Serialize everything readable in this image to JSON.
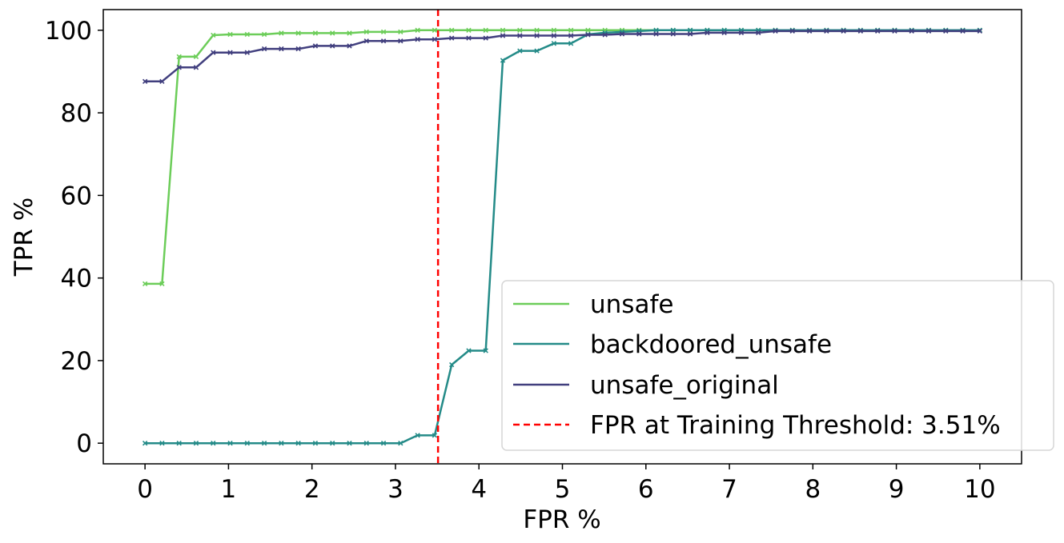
{
  "chart_data": {
    "type": "line",
    "xlabel": "FPR %",
    "ylabel": "TPR %",
    "xlim": [
      -0.5,
      10.5
    ],
    "ylim": [
      -5,
      105
    ],
    "xticks": [
      0,
      1,
      2,
      3,
      4,
      5,
      6,
      7,
      8,
      9,
      10
    ],
    "yticks": [
      0,
      20,
      40,
      60,
      80,
      100
    ],
    "grid": false,
    "legend_position": "lower-right",
    "x": [
      0.0,
      0.2041,
      0.4082,
      0.6122,
      0.8163,
      1.0204,
      1.2245,
      1.4286,
      1.6327,
      1.8367,
      2.0408,
      2.2449,
      2.449,
      2.6531,
      2.8571,
      3.0612,
      3.2653,
      3.4694,
      3.6735,
      3.8776,
      4.0816,
      4.2857,
      4.4898,
      4.6939,
      4.898,
      5.102,
      5.3061,
      5.5102,
      5.7143,
      5.9184,
      6.1224,
      6.3265,
      6.5306,
      6.7347,
      6.9388,
      7.1429,
      7.3469,
      7.551,
      7.7551,
      7.9592,
      8.1633,
      8.3673,
      8.5714,
      8.7755,
      8.9796,
      9.1837,
      9.3878,
      9.5918,
      9.7959,
      10.0
    ],
    "series": [
      {
        "name": "unsafe",
        "color": "#6ccd59",
        "values": [
          38.6,
          38.6,
          93.6,
          93.6,
          98.8,
          99.0,
          99.0,
          99.0,
          99.3,
          99.3,
          99.3,
          99.3,
          99.3,
          99.6,
          99.6,
          99.6,
          100,
          100,
          100,
          100,
          100,
          100,
          100,
          100,
          100,
          100,
          100,
          100,
          100,
          100,
          100,
          100,
          100,
          100,
          100,
          100,
          100,
          100,
          100,
          100,
          100,
          100,
          100,
          100,
          100,
          100,
          100,
          100,
          100,
          100
        ]
      },
      {
        "name": "backdoored_unsafe",
        "color": "#248b88",
        "values": [
          0,
          0,
          0,
          0,
          0,
          0,
          0,
          0,
          0,
          0,
          0,
          0,
          0,
          0,
          0,
          0,
          1.9,
          1.9,
          19.0,
          22.4,
          22.4,
          92.7,
          95.0,
          95.0,
          96.8,
          96.8,
          99.0,
          99.4,
          99.6,
          99.8,
          100,
          100,
          100,
          100,
          100,
          100,
          100,
          100,
          100,
          100,
          100,
          100,
          100,
          100,
          100,
          100,
          100,
          100,
          100,
          100
        ]
      },
      {
        "name": "unsafe_original",
        "color": "#413f7e",
        "values": [
          87.6,
          87.6,
          91.0,
          91.0,
          94.6,
          94.6,
          94.6,
          95.5,
          95.5,
          95.5,
          96.2,
          96.2,
          96.2,
          97.4,
          97.4,
          97.4,
          97.8,
          97.8,
          98.1,
          98.1,
          98.1,
          98.7,
          98.7,
          98.7,
          98.7,
          98.7,
          98.9,
          98.9,
          99.1,
          99.1,
          99.1,
          99.1,
          99.1,
          99.4,
          99.4,
          99.4,
          99.4,
          99.8,
          99.8,
          99.8,
          99.8,
          99.8,
          99.8,
          99.8,
          99.8,
          99.8,
          99.8,
          99.8,
          99.8,
          99.8
        ]
      }
    ],
    "threshold_line": {
      "x": 3.51,
      "label": "FPR at Training Threshold: 3.51%",
      "color": "#ff0000",
      "style": "dashed"
    }
  }
}
